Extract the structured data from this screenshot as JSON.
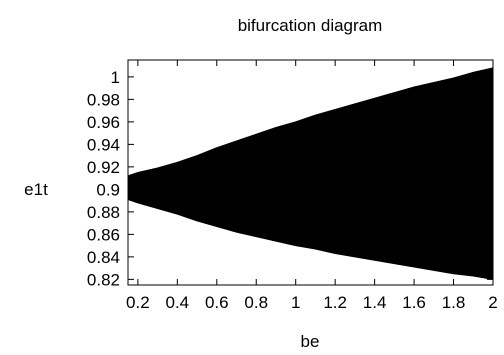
{
  "chart_data": {
    "type": "area",
    "title": "bifurcation diagram",
    "xlabel": "be",
    "ylabel": "e1t",
    "xlim": [
      0.15,
      2.0
    ],
    "ylim": [
      0.815,
      1.015
    ],
    "x_ticks": [
      0.2,
      0.4,
      0.6,
      0.8,
      1,
      1.2,
      1.4,
      1.6,
      1.8,
      2
    ],
    "x_tick_labels": [
      "0.2",
      "0.4",
      "0.6",
      "0.8",
      "1",
      "1.2",
      "1.4",
      "1.6",
      "1.8",
      "2"
    ],
    "y_ticks": [
      0.82,
      0.84,
      0.86,
      0.88,
      0.9,
      0.92,
      0.94,
      0.96,
      0.98,
      1
    ],
    "y_tick_labels": [
      "0.82",
      "0.84",
      "0.86",
      "0.88",
      "0.9",
      "0.92",
      "0.94",
      "0.96",
      "0.98",
      "1"
    ],
    "grid": false,
    "fill_color": "#000000",
    "series": [
      {
        "x": [
          0.15,
          0.2,
          0.3,
          0.4,
          0.5,
          0.6,
          0.7,
          0.8,
          0.9,
          1.0,
          1.1,
          1.2,
          1.3,
          1.4,
          1.5,
          1.6,
          1.7,
          1.8,
          1.9,
          2.0
        ],
        "upper": [
          0.912,
          0.915,
          0.919,
          0.924,
          0.93,
          0.937,
          0.943,
          0.949,
          0.955,
          0.96,
          0.966,
          0.971,
          0.976,
          0.981,
          0.986,
          0.991,
          0.995,
          0.999,
          1.004,
          1.008
        ],
        "lower": [
          0.891,
          0.888,
          0.883,
          0.878,
          0.872,
          0.867,
          0.862,
          0.858,
          0.854,
          0.85,
          0.847,
          0.843,
          0.84,
          0.837,
          0.834,
          0.831,
          0.828,
          0.825,
          0.823,
          0.82
        ]
      }
    ]
  }
}
